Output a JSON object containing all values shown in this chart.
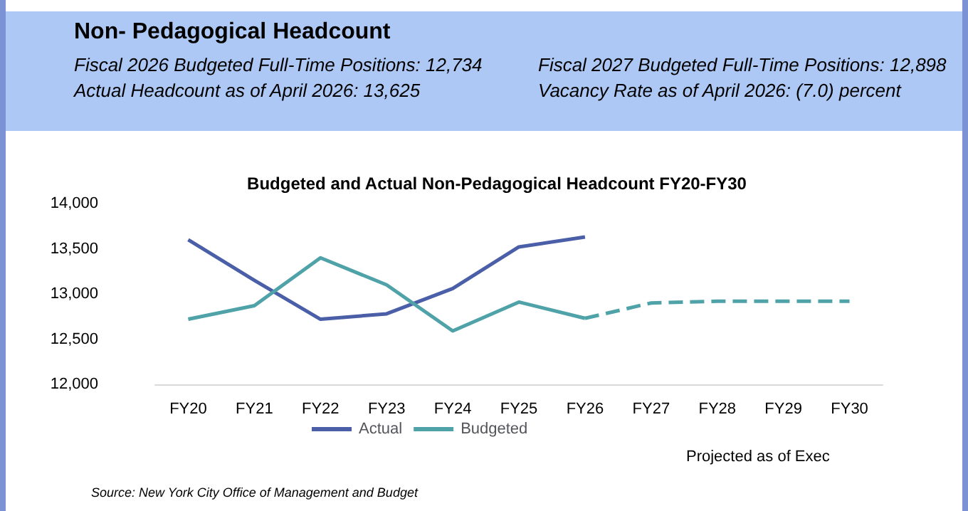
{
  "chart_data": {
    "type": "line",
    "title": "Non- Pedagogical Headcount",
    "subtitle": "Budgeted and Actual Non-Pedagogical Headcount FY20-FY30",
    "annotations": [
      "Fiscal 2026 Budgeted Full-Time Positions: 12,734",
      "Fiscal 2027 Budgeted Full-Time Positions: 12,898",
      "Actual Headcount as of April 2026: 13,625",
      "Vacancy Rate as of April 2026: (7.0) percent",
      "Projected as of Exec",
      "Source: New York City Office of Management and Budget"
    ],
    "categories": [
      "FY20",
      "FY21",
      "FY22",
      "FY23",
      "FY24",
      "FY25",
      "FY26",
      "FY27",
      "FY28",
      "FY29",
      "FY30"
    ],
    "series": [
      {
        "name": "Actual",
        "color": "#4a5fa8",
        "values": [
          13600,
          13150,
          12720,
          12780,
          13060,
          13520,
          13630,
          null,
          null,
          null,
          null
        ]
      },
      {
        "name": "Budgeted",
        "color": "#4fa3a8",
        "values": [
          12720,
          12870,
          13400,
          13100,
          12590,
          12910,
          12730,
          null,
          null,
          null,
          null
        ]
      },
      {
        "color": "#4fa3a8",
        "line_style": "dashed",
        "values": [
          null,
          null,
          null,
          null,
          null,
          null,
          12730,
          12900,
          12920,
          12920,
          12920
        ]
      }
    ],
    "ylim": [
      12000,
      14000
    ],
    "yticks": [
      {
        "value": 12000,
        "label": "12,000"
      },
      {
        "value": 12500,
        "label": "12,500"
      },
      {
        "value": 13000,
        "label": "13,000"
      },
      {
        "value": 13500,
        "label": "13,500"
      },
      {
        "value": 14000,
        "label": "14,000"
      }
    ],
    "grid": false,
    "legend": "bottom",
    "marker": "none",
    "line_style": "solid"
  }
}
